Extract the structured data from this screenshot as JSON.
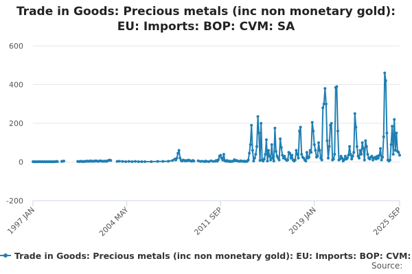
{
  "title_line1": "Trade in Goods: Precious metals (inc non monetary gold):",
  "title_line2": "EU: Imports: BOP: CVM: SA",
  "source_label": "Source:",
  "colors": {
    "series": "#1f7fb4",
    "grid": "#e6e6e6",
    "axis": "#ccd6eb"
  },
  "chart_data": {
    "type": "line",
    "title": "Trade in Goods: Precious metals (inc non monetary gold): EU: Imports: BOP: CVM: SA",
    "xlabel": "",
    "ylabel": "",
    "ylim": [
      -200,
      600
    ],
    "yticks": [
      -200,
      0,
      200,
      400,
      600
    ],
    "xticks": [
      "1997 JAN",
      "2004 MAY",
      "2011 SEP",
      "2019 JAN",
      "2025 SEP"
    ],
    "x_range": [
      "1997 JAN",
      "2025 SEP"
    ],
    "legend": "Trade in Goods: Precious metals (inc non monetary gold): EU: Imports: BOP: CVM: SA",
    "legend_position": "bottom",
    "grid": true,
    "series": [
      {
        "name": "Trade in Goods: Precious metals (inc non monetary gold): EU: Imports: BOP: CVM: SA",
        "points": [
          [
            "1997 JAN",
            2
          ],
          [
            "1997 FEB",
            1
          ],
          [
            "1997 MAR",
            2
          ],
          [
            "1997 APR",
            1
          ],
          [
            "1997 MAY",
            2
          ],
          [
            "1997 JUN",
            1
          ],
          [
            "1997 JUL",
            2
          ],
          [
            "1997 AUG",
            2
          ],
          [
            "1997 SEP",
            1
          ],
          [
            "1997 OCT",
            2
          ],
          [
            "1997 NOV",
            1
          ],
          [
            "1997 DEC",
            2
          ],
          [
            "1998 JAN",
            1
          ],
          [
            "1998 FEB",
            2
          ],
          [
            "1998 MAR",
            1
          ],
          [
            "1998 APR",
            2
          ],
          [
            "1998 MAY",
            1
          ],
          [
            "1998 JUN",
            2
          ],
          [
            "1998 JUL",
            1
          ],
          [
            "1998 AUG",
            2
          ],
          [
            "1998 SEP",
            1
          ],
          [
            "1998 OCT",
            2
          ],
          [
            "1998 NOV",
            3
          ],
          [
            "1998 DEC",
            2
          ],
          [
            null,
            null
          ],
          [
            "1999 APR",
            3
          ],
          [
            "1999 MAY",
            4
          ],
          [
            "1999 JUN",
            5
          ],
          [
            null,
            null
          ],
          [
            "2000 JUL",
            3
          ],
          [
            "2000 AUG",
            2
          ],
          [
            "2000 SEP",
            3
          ],
          [
            "2000 OCT",
            4
          ],
          [
            "2000 NOV",
            2
          ],
          [
            "2000 DEC",
            3
          ],
          [
            "2001 JAN",
            2
          ],
          [
            "2001 FEB",
            4
          ],
          [
            "2001 MAR",
            3
          ],
          [
            "2001 APR",
            5
          ],
          [
            "2001 MAY",
            4
          ],
          [
            "2001 JUN",
            3
          ],
          [
            "2001 JUL",
            6
          ],
          [
            "2001 AUG",
            4
          ],
          [
            "2001 SEP",
            3
          ],
          [
            "2001 OCT",
            5
          ],
          [
            "2001 NOV",
            4
          ],
          [
            "2001 DEC",
            6
          ],
          [
            "2002 JAN",
            5
          ],
          [
            "2002 FEB",
            3
          ],
          [
            "2002 MAR",
            4
          ],
          [
            "2002 APR",
            6
          ],
          [
            "2002 MAY",
            5
          ],
          [
            "2002 JUN",
            4
          ],
          [
            "2002 JUL",
            3
          ],
          [
            "2002 AUG",
            5
          ],
          [
            "2002 SEP",
            4
          ],
          [
            "2002 OCT",
            3
          ],
          [
            "2002 NOV",
            6
          ],
          [
            "2002 DEC",
            8
          ],
          [
            "2003 JAN",
            10
          ],
          [
            "2003 FEB",
            8
          ],
          [
            null,
            null
          ],
          [
            "2003 AUG",
            3
          ],
          [
            "2003 OCT",
            4
          ],
          [
            "2004 JAN",
            3
          ],
          [
            "2004 APR",
            2
          ],
          [
            "2004 JUL",
            3
          ],
          [
            "2004 OCT",
            2
          ],
          [
            "2005 JAN",
            3
          ],
          [
            "2005 APR",
            2
          ],
          [
            "2005 JUL",
            2
          ],
          [
            "2005 OCT",
            2
          ],
          [
            "2006 APR",
            2
          ],
          [
            "2006 OCT",
            3
          ],
          [
            "2007 MAR",
            3
          ],
          [
            "2007 AUG",
            4
          ],
          [
            "2007 DEC",
            8
          ],
          [
            "2008 FEB",
            15
          ],
          [
            "2008 MAR",
            10
          ],
          [
            "2008 APR",
            20
          ],
          [
            "2008 MAY",
            45
          ],
          [
            "2008 JUN",
            60
          ],
          [
            "2008 JUL",
            20
          ],
          [
            "2008 AUG",
            8
          ],
          [
            "2008 SEP",
            5
          ],
          [
            "2008 OCT",
            10
          ],
          [
            "2008 NOV",
            8
          ],
          [
            "2008 DEC",
            5
          ],
          [
            "2009 JAN",
            8
          ],
          [
            "2009 FEB",
            6
          ],
          [
            "2009 MAR",
            10
          ],
          [
            "2009 APR",
            8
          ],
          [
            "2009 MAY",
            5
          ],
          [
            "2009 JUN",
            4
          ],
          [
            "2009 JUL",
            8
          ],
          [
            "2009 AUG",
            5
          ],
          [
            null,
            null
          ],
          [
            "2009 DEC",
            6
          ],
          [
            "2010 FEB",
            3
          ],
          [
            "2010 APR",
            4
          ],
          [
            "2010 JUN",
            2
          ],
          [
            "2010 JUL",
            5
          ],
          [
            "2010 AUG",
            3
          ],
          [
            "2010 OCT",
            2
          ],
          [
            "2010 DEC",
            6
          ],
          [
            "2011 FEB",
            3
          ],
          [
            "2011 APR",
            4
          ],
          [
            "2011 MAY",
            8
          ],
          [
            "2011 JUN",
            4
          ],
          [
            "2011 JUL",
            12
          ],
          [
            "2011 AUG",
            30
          ],
          [
            "2011 SEP",
            35
          ],
          [
            "2011 OCT",
            20
          ],
          [
            "2011 NOV",
            10
          ],
          [
            "2011 DEC",
            40
          ],
          [
            "2012 JAN",
            6
          ],
          [
            "2012 FEB",
            4
          ],
          [
            "2012 MAR",
            8
          ],
          [
            "2012 APR",
            3
          ],
          [
            "2012 MAY",
            5
          ],
          [
            "2012 JUN",
            2
          ],
          [
            "2012 JUL",
            4
          ],
          [
            "2012 AUG",
            3
          ],
          [
            "2012 SEP",
            5
          ],
          [
            "2012 OCT",
            12
          ],
          [
            "2012 NOV",
            6
          ],
          [
            "2012 DEC",
            8
          ],
          [
            "2013 JAN",
            5
          ],
          [
            "2013 FEB",
            4
          ],
          [
            "2013 MAR",
            3
          ],
          [
            "2013 APR",
            6
          ],
          [
            "2013 MAY",
            4
          ],
          [
            "2013 JUN",
            3
          ],
          [
            "2013 JUL",
            5
          ],
          [
            "2013 AUG",
            2
          ],
          [
            "2013 SEP",
            4
          ],
          [
            "2013 OCT",
            3
          ],
          [
            "2013 NOV",
            10
          ],
          [
            "2013 DEC",
            45
          ],
          [
            "2014 JAN",
            90
          ],
          [
            "2014 FEB",
            190
          ],
          [
            "2014 MAR",
            60
          ],
          [
            "2014 APR",
            5
          ],
          [
            "2014 MAY",
            20
          ],
          [
            "2014 JUN",
            40
          ],
          [
            "2014 JUL",
            80
          ],
          [
            "2014 AUG",
            235
          ],
          [
            "2014 SEP",
            150
          ],
          [
            "2014 OCT",
            8
          ],
          [
            "2014 NOV",
            200
          ],
          [
            "2014 DEC",
            10
          ],
          [
            "2015 JAN",
            5
          ],
          [
            "2015 FEB",
            15
          ],
          [
            "2015 MAR",
            40
          ],
          [
            "2015 APR",
            115
          ],
          [
            "2015 MAY",
            5
          ],
          [
            "2015 JUN",
            60
          ],
          [
            "2015 JUL",
            30
          ],
          [
            "2015 AUG",
            10
          ],
          [
            "2015 SEP",
            90
          ],
          [
            "2015 OCT",
            20
          ],
          [
            "2015 NOV",
            5
          ],
          [
            "2015 DEC",
            175
          ],
          [
            "2016 JAN",
            55
          ],
          [
            "2016 FEB",
            30
          ],
          [
            "2016 MAR",
            20
          ],
          [
            "2016 APR",
            10
          ],
          [
            "2016 MAY",
            120
          ],
          [
            "2016 JUN",
            75
          ],
          [
            "2016 JUL",
            35
          ],
          [
            "2016 AUG",
            20
          ],
          [
            "2016 SEP",
            30
          ],
          [
            "2016 OCT",
            15
          ],
          [
            "2016 NOV",
            8
          ],
          [
            "2016 DEC",
            10
          ],
          [
            "2017 JAN",
            50
          ],
          [
            "2017 FEB",
            45
          ],
          [
            "2017 MAR",
            20
          ],
          [
            "2017 APR",
            35
          ],
          [
            "2017 MAY",
            10
          ],
          [
            "2017 JUN",
            5
          ],
          [
            "2017 JUL",
            10
          ],
          [
            "2017 AUG",
            60
          ],
          [
            "2017 SEP",
            40
          ],
          [
            "2017 OCT",
            20
          ],
          [
            "2017 NOV",
            160
          ],
          [
            "2017 DEC",
            180
          ],
          [
            "2018 JAN",
            40
          ],
          [
            "2018 FEB",
            25
          ],
          [
            "2018 MAR",
            20
          ],
          [
            "2018 APR",
            10
          ],
          [
            "2018 MAY",
            5
          ],
          [
            "2018 JUN",
            50
          ],
          [
            "2018 JUL",
            20
          ],
          [
            "2018 AUG",
            25
          ],
          [
            "2018 SEP",
            60
          ],
          [
            "2018 OCT",
            50
          ],
          [
            "2018 NOV",
            205
          ],
          [
            "2018 DEC",
            160
          ],
          [
            "2019 JAN",
            90
          ],
          [
            "2019 FEB",
            60
          ],
          [
            "2019 MAR",
            25
          ],
          [
            "2019 APR",
            30
          ],
          [
            "2019 MAY",
            100
          ],
          [
            "2019 JUN",
            60
          ],
          [
            "2019 JUL",
            20
          ],
          [
            "2019 AUG",
            10
          ],
          [
            "2019 SEP",
            280
          ],
          [
            "2019 OCT",
            300
          ],
          [
            "2019 NOV",
            380
          ],
          [
            "2019 DEC",
            300
          ],
          [
            "2020 JAN",
            110
          ],
          [
            "2020 FEB",
            20
          ],
          [
            "2020 MAR",
            80
          ],
          [
            "2020 APR",
            190
          ],
          [
            "2020 MAY",
            200
          ],
          [
            "2020 JUN",
            10
          ],
          [
            "2020 JUL",
            15
          ],
          [
            "2020 AUG",
            40
          ],
          [
            "2020 SEP",
            385
          ],
          [
            "2020 OCT",
            390
          ],
          [
            "2020 NOV",
            160
          ],
          [
            "2020 DEC",
            10
          ],
          [
            "2021 JAN",
            15
          ],
          [
            "2021 FEB",
            30
          ],
          [
            "2021 MAR",
            20
          ],
          [
            "2021 APR",
            5
          ],
          [
            "2021 MAY",
            12
          ],
          [
            "2021 JUN",
            30
          ],
          [
            "2021 JUL",
            15
          ],
          [
            "2021 AUG",
            20
          ],
          [
            "2021 SEP",
            35
          ],
          [
            "2021 OCT",
            80
          ],
          [
            "2021 NOV",
            40
          ],
          [
            "2021 DEC",
            15
          ],
          [
            "2022 JAN",
            30
          ],
          [
            "2022 FEB",
            50
          ],
          [
            "2022 MAR",
            250
          ],
          [
            "2022 APR",
            180
          ],
          [
            "2022 MAY",
            80
          ],
          [
            "2022 JUN",
            30
          ],
          [
            "2022 JUL",
            20
          ],
          [
            "2022 AUG",
            60
          ],
          [
            "2022 SEP",
            40
          ],
          [
            "2022 OCT",
            100
          ],
          [
            "2022 NOV",
            70
          ],
          [
            "2022 DEC",
            10
          ],
          [
            "2023 JAN",
            110
          ],
          [
            "2023 FEB",
            80
          ],
          [
            "2023 MAR",
            40
          ],
          [
            "2023 APR",
            20
          ],
          [
            "2023 MAY",
            15
          ],
          [
            "2023 JUN",
            25
          ],
          [
            "2023 JUL",
            30
          ],
          [
            "2023 AUG",
            10
          ],
          [
            "2023 SEP",
            20
          ],
          [
            "2023 OCT",
            25
          ],
          [
            "2023 NOV",
            15
          ],
          [
            "2023 DEC",
            30
          ],
          [
            "2024 JAN",
            20
          ],
          [
            "2024 FEB",
            35
          ],
          [
            "2024 MAR",
            70
          ],
          [
            "2024 APR",
            10
          ],
          [
            "2024 MAY",
            25
          ],
          [
            "2024 JUN",
            130
          ],
          [
            "2024 JUL",
            460
          ],
          [
            "2024 AUG",
            420
          ],
          [
            "2024 SEP",
            150
          ],
          [
            "2024 OCT",
            10
          ],
          [
            "2024 NOV",
            5
          ],
          [
            "2024 DEC",
            10
          ],
          [
            "2025 JAN",
            90
          ],
          [
            "2025 FEB",
            185
          ],
          [
            "2025 MAR",
            40
          ],
          [
            "2025 APR",
            220
          ],
          [
            "2025 MAY",
            60
          ],
          [
            "2025 JUN",
            150
          ],
          [
            "2025 JUL",
            55
          ],
          [
            "2025 AUG",
            50
          ],
          [
            "2025 SEP",
            35
          ]
        ]
      }
    ]
  }
}
